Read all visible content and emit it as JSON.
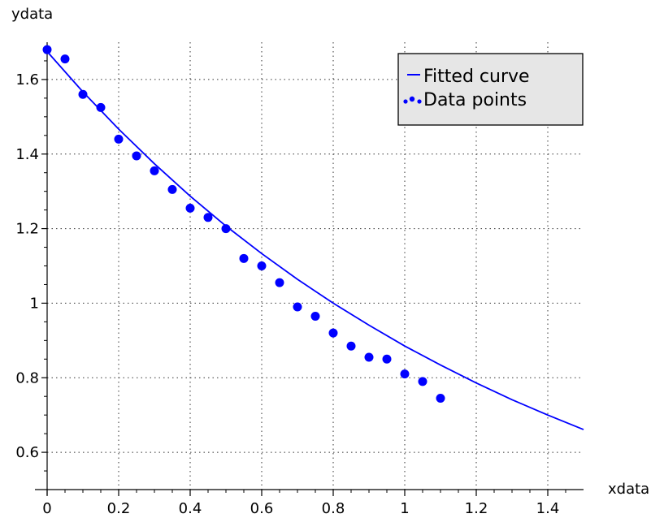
{
  "chart_data": {
    "type": "scatter",
    "xlabel": "xdata",
    "ylabel": "ydata",
    "xlim": [
      0,
      1.5
    ],
    "ylim": [
      0.5,
      1.7
    ],
    "grid": true,
    "legend_position": "top-right",
    "x_ticks": [
      0,
      0.2,
      0.4,
      0.6,
      0.8,
      1,
      1.2,
      1.4
    ],
    "x_tick_labels": [
      "0",
      "0.2",
      "0.4",
      "0.6",
      "0.8",
      "1",
      "1.2",
      "1.4"
    ],
    "y_ticks": [
      0.6,
      0.8,
      1.0,
      1.2,
      1.4,
      1.6
    ],
    "y_tick_labels": [
      "0.6",
      "0.8",
      "1",
      "1.2",
      "1.4",
      "1.6"
    ],
    "series": [
      {
        "name": "Fitted curve",
        "kind": "line",
        "color": "#0000ff",
        "x": [
          0,
          0.1,
          0.2,
          0.3,
          0.4,
          0.5,
          0.6,
          0.7,
          0.8,
          0.9,
          1.0,
          1.1,
          1.2,
          1.3,
          1.4,
          1.5
        ],
        "y": [
          1.675,
          1.567,
          1.467,
          1.374,
          1.287,
          1.207,
          1.133,
          1.064,
          1.0,
          0.941,
          0.885,
          0.834,
          0.786,
          0.741,
          0.7,
          0.661
        ]
      },
      {
        "name": "Data points",
        "kind": "scatter",
        "color": "#0000ff",
        "x": [
          0,
          0.05,
          0.1,
          0.15,
          0.2,
          0.25,
          0.3,
          0.35,
          0.4,
          0.45,
          0.5,
          0.55,
          0.6,
          0.65,
          0.7,
          0.75,
          0.8,
          0.85,
          0.9,
          0.95,
          1.0,
          1.05,
          1.1
        ],
        "y": [
          1.68,
          1.655,
          1.56,
          1.525,
          1.44,
          1.395,
          1.355,
          1.305,
          1.255,
          1.23,
          1.2,
          1.12,
          1.1,
          1.055,
          0.99,
          0.965,
          0.92,
          0.885,
          0.855,
          0.85,
          0.81,
          0.79,
          0.745
        ]
      }
    ]
  }
}
